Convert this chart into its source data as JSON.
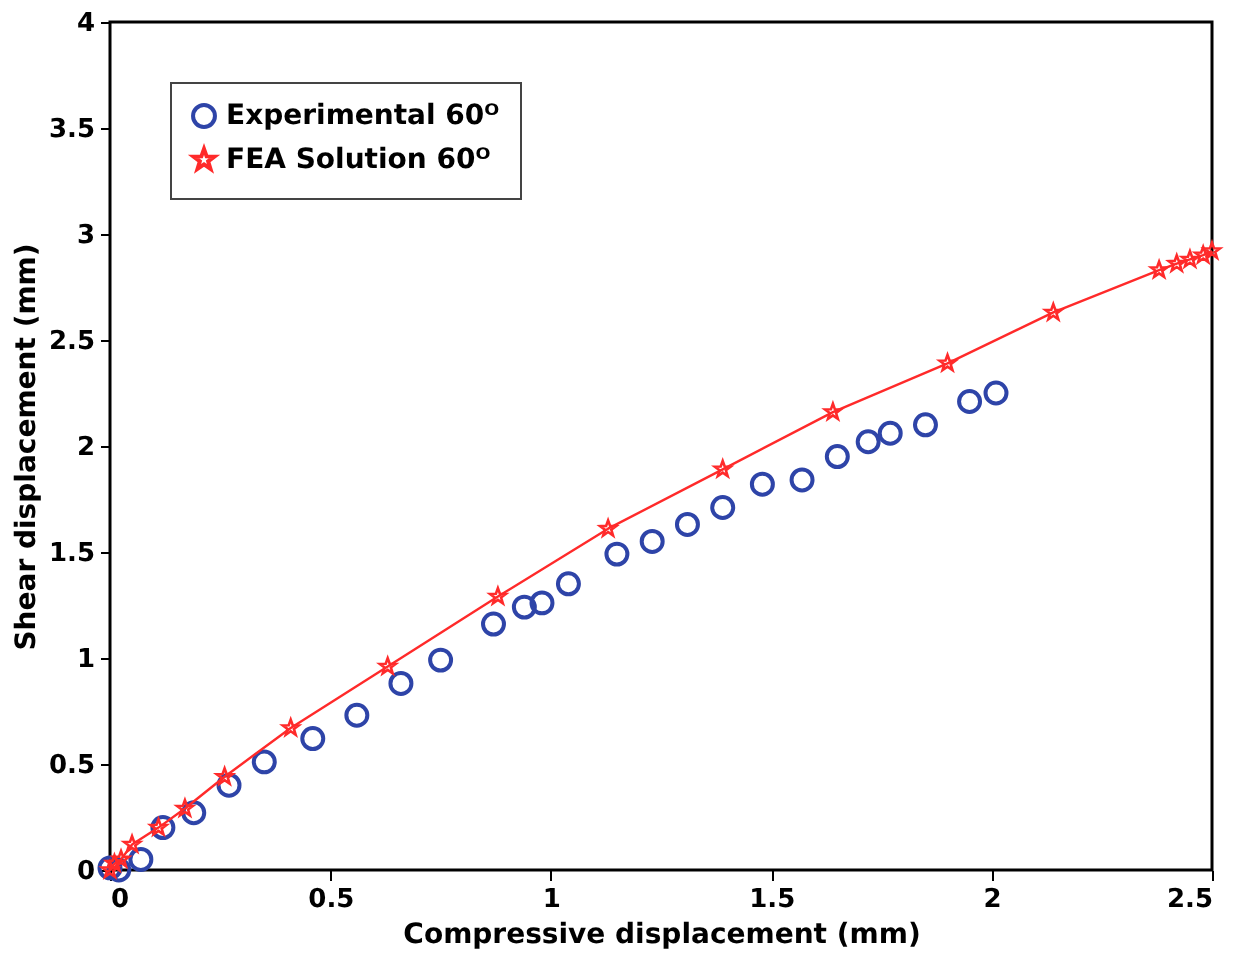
{
  "chart_data": {
    "type": "scatter",
    "xlabel": "Compressive displacement (mm)",
    "ylabel": "Shear displacement (mm)",
    "xlim": [
      0,
      2.5
    ],
    "ylim": [
      0,
      4
    ],
    "xticks": [
      0,
      0.5,
      1,
      1.5,
      2,
      2.5
    ],
    "yticks": [
      0,
      0.5,
      1,
      1.5,
      2,
      2.5,
      3,
      3.5,
      4
    ],
    "grid": false,
    "legend": "top left",
    "series": [
      {
        "name": "Experimental 60ᴼ",
        "marker": "circle",
        "color": "#2e44a8",
        "x": [
          0.0,
          0.02,
          0.07,
          0.12,
          0.19,
          0.27,
          0.35,
          0.46,
          0.56,
          0.66,
          0.75,
          0.87,
          0.94,
          0.98,
          1.04,
          1.15,
          1.23,
          1.31,
          1.39,
          1.48,
          1.57,
          1.65,
          1.72,
          1.77,
          1.85,
          1.95,
          2.01
        ],
        "values": [
          0.01,
          0.0,
          0.05,
          0.2,
          0.27,
          0.4,
          0.51,
          0.62,
          0.73,
          0.88,
          0.99,
          1.16,
          1.24,
          1.26,
          1.35,
          1.49,
          1.55,
          1.63,
          1.71,
          1.82,
          1.84,
          1.95,
          2.02,
          2.06,
          2.1,
          2.21,
          2.25
        ]
      },
      {
        "name": "FEA Solution 60ᴼ",
        "type": "line",
        "marker": "star",
        "line_style": "solid",
        "color": "#ff2a2a",
        "x": [
          0.0,
          0.01,
          0.025,
          0.05,
          0.11,
          0.17,
          0.26,
          0.41,
          0.63,
          0.88,
          1.13,
          1.39,
          1.64,
          1.9,
          2.14,
          2.38,
          2.42,
          2.45,
          2.48,
          2.5
        ],
        "values": [
          0.0,
          0.03,
          0.05,
          0.12,
          0.2,
          0.29,
          0.44,
          0.67,
          0.96,
          1.29,
          1.61,
          1.89,
          2.16,
          2.39,
          2.63,
          2.83,
          2.86,
          2.88,
          2.9,
          2.92
        ]
      }
    ]
  }
}
